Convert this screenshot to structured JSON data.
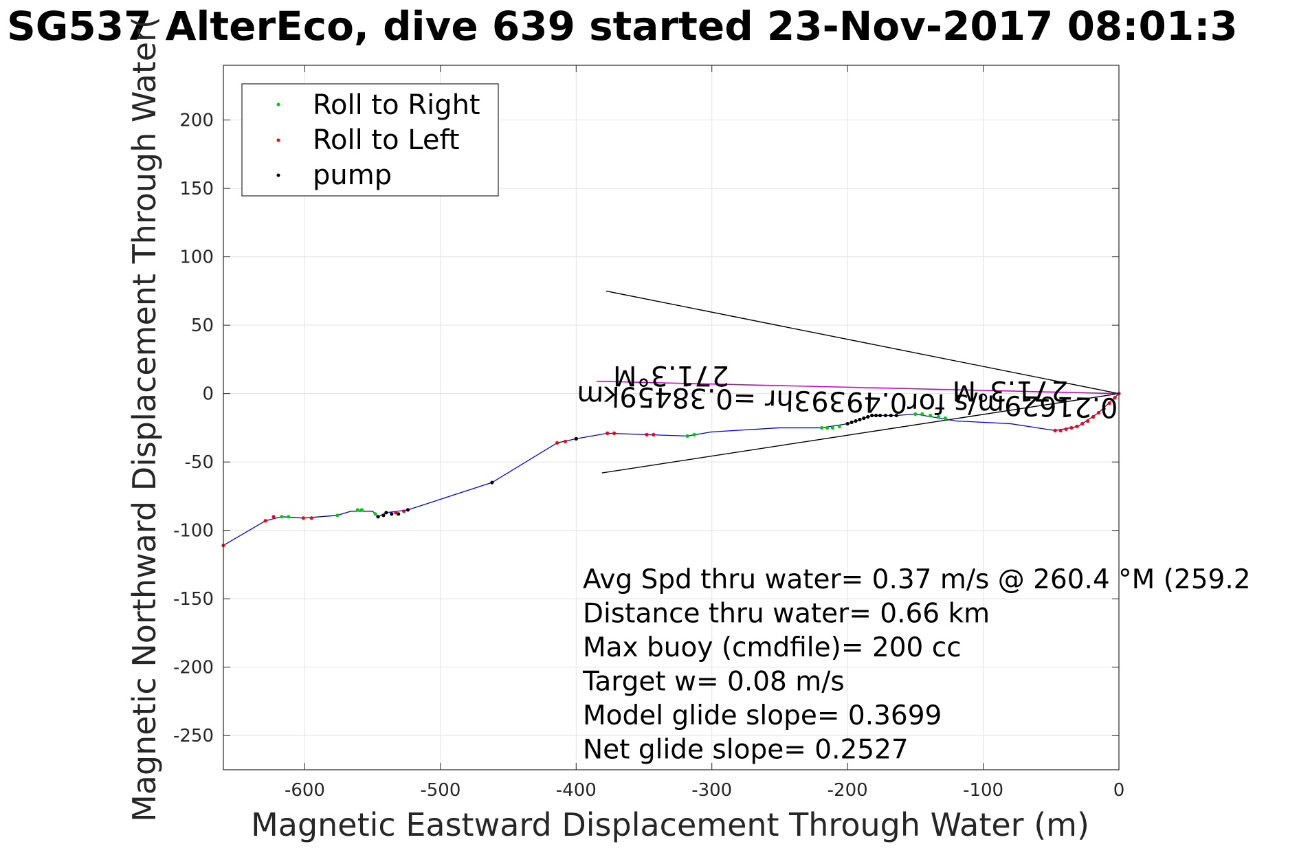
{
  "chart_data": {
    "type": "scatter",
    "title": "SG537 AlterEco, dive 639 started 23-Nov-2017 08:01:3",
    "xlabel": "Magnetic Eastward Displacement Through Water (m)",
    "ylabel": "Magnetic Northward Displacement Through Water(",
    "xlim": [
      -660,
      0
    ],
    "ylim": [
      -275,
      240
    ],
    "xticks": [
      -600,
      -500,
      -400,
      -300,
      -200,
      -100,
      0
    ],
    "yticks": [
      200,
      150,
      100,
      50,
      0,
      -50,
      -100,
      -150,
      -200,
      -250
    ],
    "grid": true,
    "legend": {
      "position": "top-left"
    },
    "colors": {
      "track": "#0000ff",
      "right": "#00cc00",
      "left": "#ff0000",
      "pump": "#000000",
      "current": "#cc00cc",
      "wedge": "#000000"
    },
    "series": [
      {
        "name": "Roll to Right",
        "marker": "dot",
        "points": [
          [
            -617,
            -90
          ],
          [
            -612,
            -90
          ],
          [
            -576,
            -89
          ],
          [
            -561,
            -85
          ],
          [
            -558,
            -85
          ],
          [
            -548,
            -88
          ],
          [
            -219,
            -25
          ],
          [
            -215,
            -25
          ],
          [
            -211,
            -25
          ],
          [
            -206,
            -24
          ],
          [
            -150,
            -15
          ],
          [
            -145,
            -15
          ],
          [
            -139,
            -16
          ],
          [
            -133,
            -17
          ],
          [
            -128,
            -18
          ],
          [
            -318,
            -31
          ],
          [
            -313,
            -30
          ]
        ]
      },
      {
        "name": "Roll to Left",
        "marker": "dot",
        "points": [
          [
            -660,
            -111
          ],
          [
            -629,
            -93
          ],
          [
            -623,
            -90
          ],
          [
            -601,
            -91
          ],
          [
            -595,
            -91
          ],
          [
            -533,
            -87
          ],
          [
            -527,
            -86
          ],
          [
            -414,
            -36
          ],
          [
            -408,
            -35
          ],
          [
            -377,
            -29
          ],
          [
            -372,
            -29
          ],
          [
            -348,
            -30
          ],
          [
            -343,
            -30
          ],
          [
            -47,
            -27
          ],
          [
            -43,
            -27
          ],
          [
            -39,
            -26
          ],
          [
            -35,
            -25
          ],
          [
            -31,
            -24
          ],
          [
            -27,
            -22
          ],
          [
            -23,
            -20
          ],
          [
            -19,
            -17
          ],
          [
            -15,
            -14
          ],
          [
            -11,
            -11
          ],
          [
            -7,
            -7
          ],
          [
            -3,
            -3
          ],
          [
            0,
            0
          ]
        ]
      },
      {
        "name": "pump",
        "marker": "dot",
        "points": [
          [
            -546,
            -90
          ],
          [
            -542,
            -89
          ],
          [
            -540,
            -87
          ],
          [
            -536,
            -88
          ],
          [
            -531,
            -88
          ],
          [
            -524,
            -85
          ],
          [
            -462,
            -65
          ],
          [
            -400,
            -33
          ],
          [
            -200,
            -22
          ],
          [
            -197,
            -21
          ],
          [
            -194,
            -20
          ],
          [
            -191,
            -19
          ],
          [
            -188,
            -18
          ],
          [
            -185,
            -17
          ],
          [
            -182,
            -16
          ],
          [
            -179,
            -16
          ],
          [
            -176,
            -16
          ],
          [
            -172,
            -16
          ],
          [
            -168,
            -16
          ],
          [
            -164,
            -16
          ]
        ]
      }
    ],
    "track": [
      [
        -660,
        -111
      ],
      [
        -629,
        -93
      ],
      [
        -617,
        -90
      ],
      [
        -601,
        -91
      ],
      [
        -576,
        -89
      ],
      [
        -566,
        -86
      ],
      [
        -550,
        -86
      ],
      [
        -546,
        -90
      ],
      [
        -540,
        -87
      ],
      [
        -524,
        -85
      ],
      [
        -462,
        -65
      ],
      [
        -414,
        -36
      ],
      [
        -400,
        -33
      ],
      [
        -377,
        -29
      ],
      [
        -348,
        -30
      ],
      [
        -318,
        -31
      ],
      [
        -300,
        -28
      ],
      [
        -250,
        -25
      ],
      [
        -219,
        -25
      ],
      [
        -200,
        -22
      ],
      [
        -182,
        -16
      ],
      [
        -164,
        -16
      ],
      [
        -150,
        -15
      ],
      [
        -120,
        -20
      ],
      [
        -80,
        -22
      ],
      [
        -47,
        -27
      ],
      [
        -30,
        -24
      ],
      [
        -15,
        -14
      ],
      [
        0,
        0
      ]
    ],
    "current_line": [
      [
        -385,
        9
      ],
      [
        0,
        0
      ]
    ],
    "wedge": [
      [
        [
          -378,
          75
        ],
        [
          0,
          0
        ]
      ],
      [
        [
          -381,
          -58
        ],
        [
          0,
          0
        ]
      ]
    ],
    "annotations": [
      {
        "text": "0.21629m/s for0.49393hr =0.38459km",
        "x": -200,
        "y": 1,
        "rotate": 181.3
      },
      {
        "text": "271.3°M",
        "x": -330,
        "y": 20,
        "rotate": 180
      },
      {
        "text": "271.3°M",
        "x": -80,
        "y": 9,
        "rotate": 180
      }
    ],
    "stats": [
      "Avg Spd thru water=  0.37 m/s @ 260.4 °M (259.2",
      "Distance thru water=  0.66 km",
      "Max buoy (cmdfile)= 200 cc",
      "Target w= 0.08 m/s",
      "Model glide slope= 0.3699",
      "Net glide slope= 0.2527"
    ]
  }
}
